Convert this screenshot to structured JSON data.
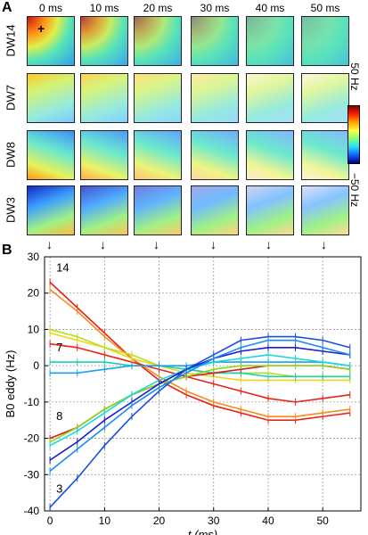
{
  "panel_a": {
    "letter": "A",
    "time_labels": [
      "0 ms",
      "10 ms",
      "20 ms",
      "30 ms",
      "40 ms",
      "50 ms"
    ],
    "row_labels": [
      "DW14",
      "DW7",
      "DW8",
      "DW3"
    ],
    "colorbar": {
      "max_label": "50 Hz",
      "min_label": "−50 Hz",
      "min": -50,
      "max": 50
    },
    "marker_glyph": "+",
    "arrow_glyph": "↓"
  },
  "panel_b": {
    "letter": "B"
  },
  "chart_data": {
    "type": "line",
    "xlabel": "t (ms)",
    "ylabel": "B0 eddy (Hz)",
    "xlim": [
      -1,
      57
    ],
    "ylim": [
      -40,
      30
    ],
    "xticks": [
      0,
      10,
      20,
      30,
      40,
      50
    ],
    "yticks": [
      -40,
      -30,
      -20,
      -10,
      0,
      10,
      20,
      30
    ],
    "grid": true,
    "x": [
      0,
      5,
      10,
      15,
      20,
      25,
      30,
      35,
      40,
      45,
      50,
      55
    ],
    "annotations": [
      {
        "text": "14",
        "x": 0.5,
        "y": 26
      },
      {
        "text": "7",
        "x": 0.5,
        "y": 4
      },
      {
        "text": "8",
        "x": 0.5,
        "y": -15
      },
      {
        "text": "3",
        "x": 0.5,
        "y": -35
      }
    ],
    "series": [
      {
        "color": "#e8221a",
        "values": [
          23,
          16,
          9,
          2,
          -4,
          -8,
          -11,
          -13,
          -15,
          -15,
          -14,
          -13
        ]
      },
      {
        "color": "#f28c1a",
        "values": [
          21,
          15,
          8,
          2,
          -3,
          -7,
          -10,
          -12,
          -14,
          -14,
          -13,
          -12
        ]
      },
      {
        "color": "#e8221a",
        "values": [
          6,
          5,
          3,
          1,
          -1,
          -3,
          -5,
          -7,
          -9,
          -10,
          -9,
          -8
        ]
      },
      {
        "color": "#f0d21a",
        "values": [
          9,
          7,
          5,
          2,
          0,
          -2,
          -3,
          -4,
          -4,
          -4,
          -4,
          -4
        ]
      },
      {
        "color": "#b8e020",
        "values": [
          10,
          8,
          5,
          3,
          0,
          -1,
          -2,
          -2,
          -2,
          -3,
          -3,
          -3
        ]
      },
      {
        "color": "#1ad0b0",
        "values": [
          1,
          1,
          1,
          0,
          0,
          -1,
          -2,
          -2,
          -3,
          -3,
          -3,
          -3
        ]
      },
      {
        "color": "#1aa0f0",
        "values": [
          -2,
          -2,
          -1,
          0,
          0,
          0,
          1,
          1,
          1,
          1,
          1,
          0
        ]
      },
      {
        "color": "#d41a1a",
        "values": [
          -20,
          -17,
          -12,
          -8,
          -5,
          -3,
          -2,
          -1,
          0,
          0,
          0,
          -1
        ]
      },
      {
        "color": "#8cd81a",
        "values": [
          -21,
          -17,
          -12,
          -8,
          -5,
          -3,
          -1,
          0,
          0,
          0,
          0,
          -1
        ]
      },
      {
        "color": "#1ad8d8",
        "values": [
          -22,
          -18,
          -13,
          -8,
          -4,
          -1,
          1,
          2,
          3,
          2,
          1,
          0
        ]
      },
      {
        "color": "#1a1ad0",
        "values": [
          -26,
          -21,
          -15,
          -10,
          -5,
          -1,
          2,
          4,
          5,
          5,
          4,
          3
        ]
      },
      {
        "color": "#1a50e0",
        "values": [
          -39,
          -31,
          -22,
          -14,
          -7,
          -1,
          3,
          7,
          8,
          8,
          7,
          5
        ]
      },
      {
        "color": "#1a8af0",
        "values": [
          -29,
          -23,
          -17,
          -11,
          -6,
          -2,
          2,
          5,
          7,
          7,
          5,
          3
        ]
      }
    ]
  }
}
